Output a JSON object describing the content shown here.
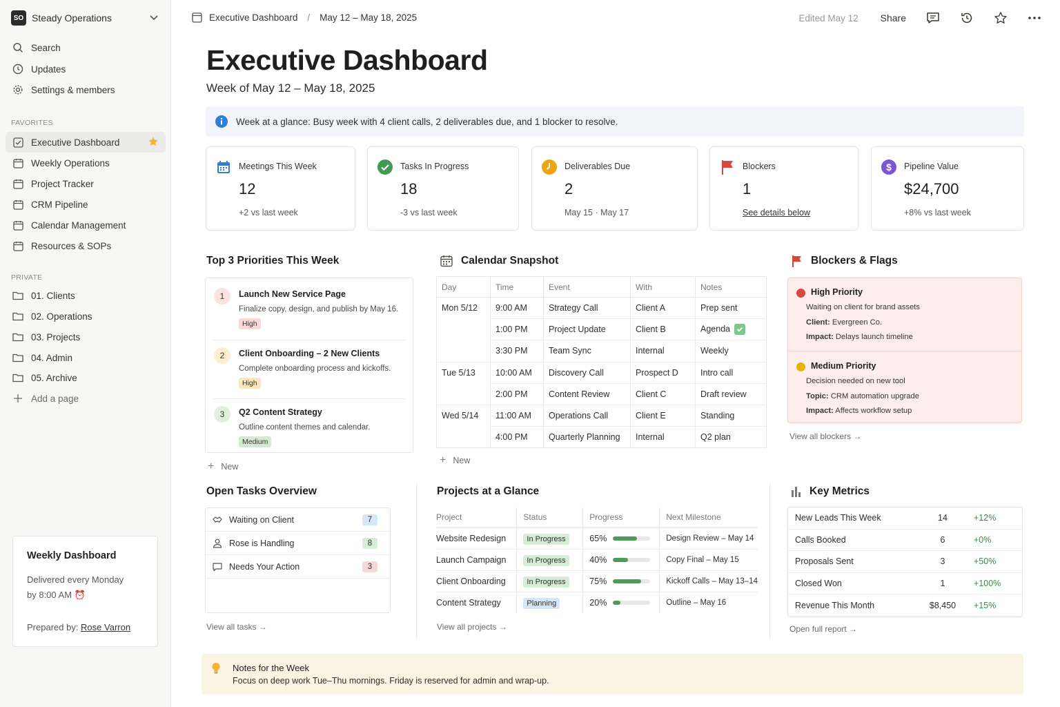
{
  "sidebar": {
    "workspace_initials": "SO",
    "workspace_name": "Steady Operations",
    "top_items": [
      {
        "label": "Search",
        "icon": "search-icon"
      },
      {
        "label": "Updates",
        "icon": "clock-icon"
      },
      {
        "label": "Settings & members",
        "icon": "gear-icon"
      }
    ],
    "favorites_label": "FAVORITES",
    "favorites": [
      {
        "label": "Executive Dashboard",
        "active": true
      },
      {
        "label": "Weekly Operations"
      },
      {
        "label": "Project Tracker"
      },
      {
        "label": "CRM Pipeline"
      },
      {
        "label": "Calendar Management"
      },
      {
        "label": "Resources & SOPs"
      }
    ],
    "private_label": "PRIVATE",
    "private": [
      {
        "label": "01. Clients"
      },
      {
        "label": "02. Operations"
      },
      {
        "label": "03. Projects"
      },
      {
        "label": "04. Admin"
      },
      {
        "label": "05. Archive"
      }
    ],
    "add_page": "Add a page",
    "weekly_card": {
      "title": "Weekly Dashboard",
      "line1": "Delivered every Monday",
      "line2": "by 8:00 AM ⏰",
      "prepared_label": "Prepared by: ",
      "prepared_name": "Rose Varron"
    }
  },
  "topbar": {
    "crumb_page": "Executive Dashboard",
    "crumb_sep": "/",
    "crumb_range": "May 12 – May 18, 2025",
    "edited": "Edited May 12",
    "share": "Share"
  },
  "header": {
    "title": "Executive Dashboard",
    "subtitle": "Week of May 12 – May 18, 2025"
  },
  "callout": "Week at a glance: Busy week with 4 client calls, 2 deliverables due, and 1 blocker to resolve.",
  "stats": [
    {
      "label": "Meetings This Week",
      "value": "12",
      "sub": "+2 vs last week",
      "icon": "calendar-icon",
      "color": "#2f7fd8"
    },
    {
      "label": "Tasks In Progress",
      "value": "18",
      "sub": "-3 vs last week",
      "icon": "check-circle-icon",
      "color": "#3f9a52"
    },
    {
      "label": "Deliverables Due",
      "value": "2",
      "sub": "May 15 · May 17",
      "icon": "clock-icon",
      "color": "#f0a20f"
    },
    {
      "label": "Blockers",
      "value": "1",
      "sub": "See details below",
      "icon": "flag-icon",
      "color": "#d9483b"
    },
    {
      "label": "Pipeline Value",
      "value": "$24,700",
      "sub": "+8% vs last week",
      "icon": "dollar-icon",
      "color": "#7b55d6"
    }
  ],
  "priorities": {
    "title": "Top 3 Priorities This Week",
    "items": [
      {
        "num": "1",
        "title": "Launch New Service Page",
        "desc": "Finalize copy, design, and publish by May 16.",
        "tag": "High",
        "num_bg": "#fbe1df",
        "tag_bg": "#f9d8d6"
      },
      {
        "num": "2",
        "title": "Client Onboarding – 2 New Clients",
        "desc": "Complete onboarding process and kickoffs.",
        "tag": "High",
        "num_bg": "#fbefcf",
        "tag_bg": "#fbe7bf"
      },
      {
        "num": "3",
        "title": "Q2 Content Strategy",
        "desc": "Outline content themes and calendar.",
        "tag": "Medium",
        "num_bg": "#dff0dc",
        "tag_bg": "#d4ead0"
      }
    ],
    "new": "New"
  },
  "calendar": {
    "title": "Calendar Snapshot",
    "headers": [
      "Day",
      "Time",
      "Event",
      "With",
      "Notes"
    ],
    "rows": [
      {
        "day": "Mon 5/12",
        "time": "9:00 AM",
        "event": "Strategy Call",
        "with": "Client A",
        "notes": "Prep sent"
      },
      {
        "day": "",
        "time": "1:00 PM",
        "event": "Project Update",
        "with": "Client B",
        "notes": "Agenda"
      },
      {
        "day": "",
        "time": "3:30 PM",
        "event": "Team Sync",
        "with": "Internal",
        "notes": "Weekly"
      },
      {
        "day": "Tue 5/13",
        "time": "10:00 AM",
        "event": "Discovery Call",
        "with": "Prospect D",
        "notes": "Intro call"
      },
      {
        "day": "",
        "time": "2:00 PM",
        "event": "Content Review",
        "with": "Client C",
        "notes": "Draft review"
      },
      {
        "day": "Wed 5/14",
        "time": "11:00 AM",
        "event": "Operations Call",
        "with": "Client E",
        "notes": "Standing"
      },
      {
        "day": "",
        "time": "4:00 PM",
        "event": "Quarterly Planning",
        "with": "Internal",
        "notes": "Q2 plan"
      }
    ],
    "new": "New"
  },
  "blockers": {
    "title": "Blockers & Flags",
    "items": [
      {
        "title": "High Priority",
        "line": "Waiting on client for brand assets",
        "k1": "Client:",
        "v1": " Evergreen Co.",
        "k2": "Impact:",
        "v2": " Delays launch timeline",
        "dot": "#d9483b"
      },
      {
        "title": "Medium Priority",
        "line": "Decision needed on new tool",
        "k1": "Topic:",
        "v1": " CRM automation upgrade",
        "k2": "Impact:",
        "v2": " Affects workflow setup",
        "dot": "#e9b10c"
      }
    ],
    "view_all": "View all blockers →"
  },
  "tasks": {
    "title": "Open Tasks Overview",
    "items": [
      {
        "label": "Waiting on Client",
        "count": "7",
        "bg": "#d6e8f7",
        "icon": "handshake-icon"
      },
      {
        "label": "Rose is Handling",
        "count": "8",
        "bg": "#d6ecd6",
        "icon": "person-icon"
      },
      {
        "label": "Needs Your Action",
        "count": "3",
        "bg": "#f8d8d6",
        "icon": "comment-icon"
      }
    ],
    "view_all": "View all tasks →"
  },
  "projects": {
    "title": "Projects at a Glance",
    "headers": [
      "Project",
      "Status",
      "Progress",
      "Next Milestone"
    ],
    "rows": [
      {
        "project": "Website Redesign",
        "status": "In Progress",
        "status_bg": "#d6ecd6",
        "progress": 65,
        "progress_label": "65%",
        "milestone": "Design Review – May 14"
      },
      {
        "project": "Launch Campaign",
        "status": "In Progress",
        "status_bg": "#d6ecd6",
        "progress": 40,
        "progress_label": "40%",
        "milestone": "Copy Final – May 15"
      },
      {
        "project": "Client Onboarding",
        "status": "In Progress",
        "status_bg": "#d6ecd6",
        "progress": 75,
        "progress_label": "75%",
        "milestone": "Kickoff Calls – May 13–14"
      },
      {
        "project": "Content Strategy",
        "status": "Planning",
        "status_bg": "#d6e6f7",
        "progress": 20,
        "progress_label": "20%",
        "milestone": "Outline – May 16"
      }
    ],
    "view_all": "View all projects →"
  },
  "metrics": {
    "title": "Key Metrics",
    "rows": [
      {
        "label": "New Leads This Week",
        "value": "14",
        "change": "+12%"
      },
      {
        "label": "Calls Booked",
        "value": "6",
        "change": "+0%"
      },
      {
        "label": "Proposals Sent",
        "value": "3",
        "change": "+50%"
      },
      {
        "label": "Closed Won",
        "value": "1",
        "change": "+100%"
      },
      {
        "label": "Revenue This Month",
        "value": "$8,450",
        "change": "+15%"
      }
    ],
    "open_report": "Open full report →"
  },
  "notes": {
    "title": "Notes for the Week",
    "text": "Focus on deep work Tue–Thu mornings. Friday is reserved for admin and wrap-up."
  }
}
